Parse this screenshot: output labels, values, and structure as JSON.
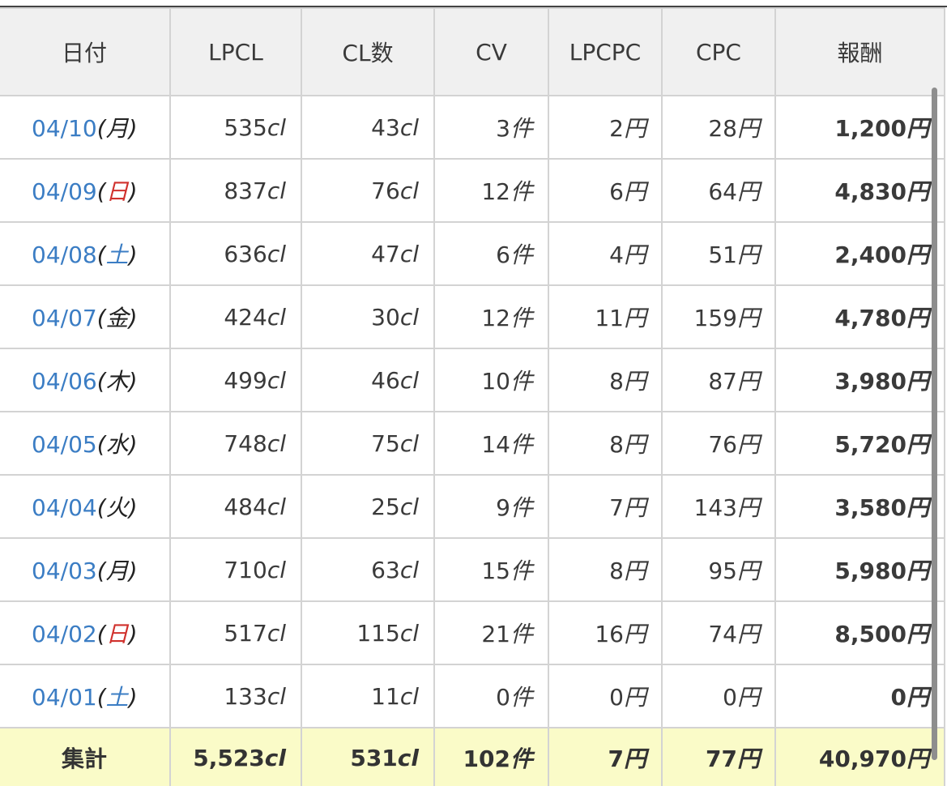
{
  "headers": {
    "date": "日付",
    "lpcl": "LPCL",
    "cl": "CL数",
    "cv": "CV",
    "lpcpc": "LPCPC",
    "cpc": "CPC",
    "reward": "報酬"
  },
  "rows": [
    {
      "date": "04/10",
      "dow": "月",
      "dow_type": "weekday",
      "lpcl": "535",
      "cl": "43",
      "cv": "3",
      "lpcpc": "2",
      "cpc": "28",
      "reward": "1,200"
    },
    {
      "date": "04/09",
      "dow": "日",
      "dow_type": "sun",
      "lpcl": "837",
      "cl": "76",
      "cv": "12",
      "lpcpc": "6",
      "cpc": "64",
      "reward": "4,830"
    },
    {
      "date": "04/08",
      "dow": "土",
      "dow_type": "sat",
      "lpcl": "636",
      "cl": "47",
      "cv": "6",
      "lpcpc": "4",
      "cpc": "51",
      "reward": "2,400"
    },
    {
      "date": "04/07",
      "dow": "金",
      "dow_type": "weekday",
      "lpcl": "424",
      "cl": "30",
      "cv": "12",
      "lpcpc": "11",
      "cpc": "159",
      "reward": "4,780"
    },
    {
      "date": "04/06",
      "dow": "木",
      "dow_type": "weekday",
      "lpcl": "499",
      "cl": "46",
      "cv": "10",
      "lpcpc": "8",
      "cpc": "87",
      "reward": "3,980"
    },
    {
      "date": "04/05",
      "dow": "水",
      "dow_type": "weekday",
      "lpcl": "748",
      "cl": "75",
      "cv": "14",
      "lpcpc": "8",
      "cpc": "76",
      "reward": "5,720"
    },
    {
      "date": "04/04",
      "dow": "火",
      "dow_type": "weekday",
      "lpcl": "484",
      "cl": "25",
      "cv": "9",
      "lpcpc": "7",
      "cpc": "143",
      "reward": "3,580"
    },
    {
      "date": "04/03",
      "dow": "月",
      "dow_type": "weekday",
      "lpcl": "710",
      "cl": "63",
      "cv": "15",
      "lpcpc": "8",
      "cpc": "95",
      "reward": "5,980"
    },
    {
      "date": "04/02",
      "dow": "日",
      "dow_type": "sun",
      "lpcl": "517",
      "cl": "115",
      "cv": "21",
      "lpcpc": "16",
      "cpc": "74",
      "reward": "8,500"
    },
    {
      "date": "04/01",
      "dow": "土",
      "dow_type": "sat",
      "lpcl": "133",
      "cl": "11",
      "cv": "0",
      "lpcpc": "0",
      "cpc": "0",
      "reward": "0"
    }
  ],
  "total": {
    "label": "集計",
    "lpcl": "5,523",
    "cl": "531",
    "cv": "102",
    "lpcpc": "7",
    "cpc": "77",
    "reward": "40,970"
  },
  "units": {
    "click": "cl",
    "count": "件",
    "yen": "円"
  },
  "colors": {
    "header_bg": "#f0f0f0",
    "date_link": "#3b7dc4",
    "sunday": "#d0312d",
    "saturday": "#3b7dc4",
    "total_bg": "#fafbc8",
    "grid": "#d3d3d3"
  }
}
